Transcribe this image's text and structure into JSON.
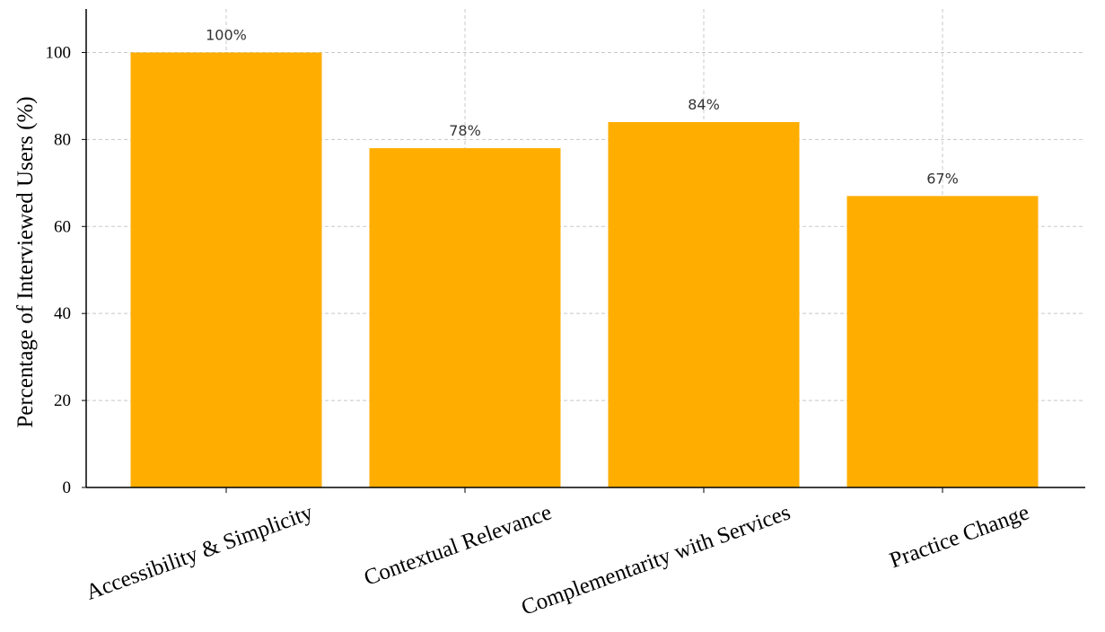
{
  "chart_data": {
    "type": "bar",
    "categories": [
      "Accessibility & Simplicity",
      "Contextual Relevance",
      "Complementarity with Services",
      "Practice Change"
    ],
    "values": [
      100,
      78,
      84,
      67
    ],
    "data_labels": [
      "100%",
      "78%",
      "84%",
      "67%"
    ],
    "title": "",
    "xlabel": "",
    "ylabel": "Percentage of Interviewed Users (%)",
    "ylim": [
      0,
      110
    ],
    "yticks": [
      0,
      20,
      40,
      60,
      80,
      100
    ],
    "grid": true,
    "bar_color": "#FFAE00"
  }
}
